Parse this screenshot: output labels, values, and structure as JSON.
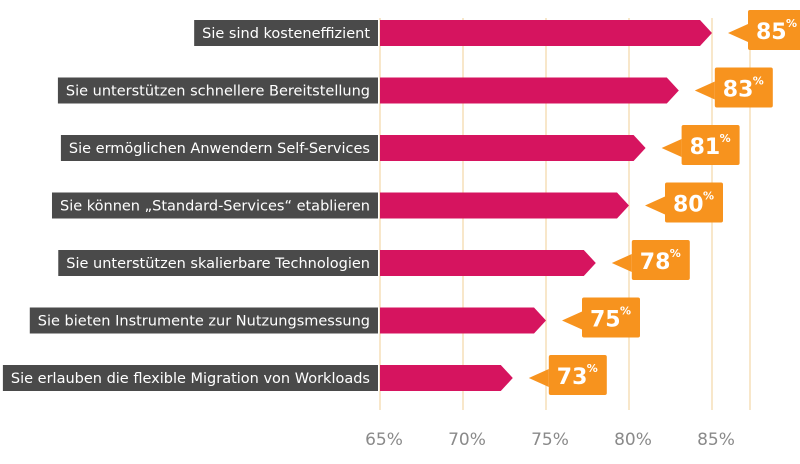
{
  "chart_data": {
    "type": "bar",
    "orientation": "horizontal",
    "categories": [
      "Sie sind kosteneffizient",
      "Sie unterstützen schnellere Bereitstellung",
      "Sie ermöglichen Anwendern Self-Services",
      "Sie können „Standard-Services“ etablieren",
      "Sie unterstützen skalierbare  Technologien",
      "Sie bieten Instrumente zur Nutzungsmessung",
      "Sie erlauben die flexible Migration von Workloads"
    ],
    "values": [
      85,
      83,
      81,
      80,
      78,
      75,
      73
    ],
    "value_labels": [
      "85",
      "83",
      "81",
      "80",
      "78",
      "75",
      "73"
    ],
    "value_suffix": "%",
    "x_ticks": [
      65,
      70,
      75,
      80,
      85
    ],
    "x_tick_labels": [
      "65%",
      "70%",
      "75%",
      "80%",
      "85%"
    ],
    "xlim": [
      65,
      87
    ],
    "grid": true,
    "colors": {
      "bar": "#d6145f",
      "label_box": "#4a4a4a",
      "value_callout": "#f7931e",
      "grid": "#f5dfb8",
      "tick_text": "#8a8a8a"
    }
  }
}
